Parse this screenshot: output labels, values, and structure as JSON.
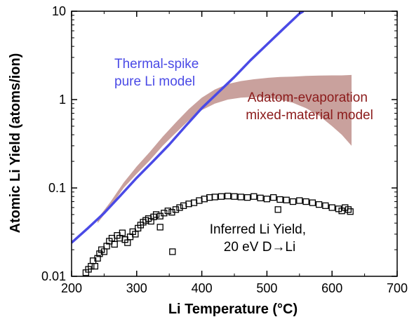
{
  "chart_data": {
    "type": "scatter",
    "xlabel": "Li Temperature (°C)",
    "ylabel": "Atomic Li Yield (atoms/ion)",
    "xlim": [
      200,
      700
    ],
    "ylim": [
      0.01,
      10
    ],
    "yscale": "log",
    "grid": false,
    "x_ticks": [
      200,
      300,
      400,
      500,
      600,
      700
    ],
    "x_tick_labels": [
      "200",
      "300",
      "400",
      "500",
      "600",
      "700"
    ],
    "y_ticks": [
      0.01,
      0.1,
      1,
      10
    ],
    "y_tick_labels": [
      "0.01",
      "0.1",
      "1",
      "10"
    ],
    "colors": {
      "thermal_spike": "#4a4ae6",
      "adatom_band": "#c9a19d",
      "adatom_text": "#8b1a1a",
      "data": "#000000"
    },
    "series": [
      {
        "name": "Thermal-spike pure Li model",
        "kind": "line",
        "x": [
          200,
          225,
          250,
          275,
          300,
          325,
          350,
          375,
          400,
          425,
          450,
          475,
          500,
          525,
          550,
          556
        ],
        "y": [
          0.024,
          0.035,
          0.052,
          0.082,
          0.13,
          0.2,
          0.31,
          0.5,
          0.8,
          1.2,
          1.8,
          2.8,
          4.2,
          6.3,
          9.4,
          10.0
        ]
      },
      {
        "name": "Adatom-evaporation mixed-material model",
        "kind": "band",
        "x": [
          240,
          260,
          280,
          300,
          320,
          340,
          360,
          380,
          400,
          420,
          440,
          460,
          480,
          500,
          520,
          540,
          560,
          580,
          600,
          615,
          630
        ],
        "y_low": [
          0.04,
          0.062,
          0.1,
          0.145,
          0.205,
          0.3,
          0.42,
          0.58,
          0.76,
          0.9,
          1.0,
          1.05,
          1.07,
          1.05,
          1.0,
          0.92,
          0.8,
          0.66,
          0.5,
          0.4,
          0.3
        ],
        "y_high": [
          0.045,
          0.07,
          0.115,
          0.175,
          0.255,
          0.38,
          0.55,
          0.78,
          1.05,
          1.3,
          1.5,
          1.62,
          1.7,
          1.76,
          1.8,
          1.82,
          1.85,
          1.87,
          1.88,
          1.88,
          1.9
        ]
      },
      {
        "name": "Inferred Li Yield, 20 eV D→Li",
        "kind": "scatter",
        "x": [
          222,
          226,
          230,
          233,
          236,
          240,
          243,
          246,
          250,
          254,
          258,
          262,
          266,
          270,
          274,
          278,
          282,
          286,
          290,
          294,
          298,
          302,
          306,
          310,
          314,
          318,
          322,
          326,
          330,
          336,
          342,
          348,
          354,
          360,
          366,
          372,
          380,
          388,
          396,
          404,
          412,
          420,
          430,
          440,
          450,
          460,
          470,
          480,
          490,
          500,
          510,
          520,
          530,
          540,
          550,
          560,
          570,
          580,
          590,
          600,
          610,
          615,
          620,
          625,
          628,
          355,
          517,
          336
        ],
        "y": [
          0.011,
          0.012,
          0.013,
          0.015,
          0.013,
          0.016,
          0.018,
          0.02,
          0.019,
          0.022,
          0.025,
          0.027,
          0.023,
          0.029,
          0.027,
          0.031,
          0.026,
          0.024,
          0.028,
          0.032,
          0.03,
          0.035,
          0.038,
          0.041,
          0.043,
          0.045,
          0.042,
          0.047,
          0.05,
          0.048,
          0.052,
          0.055,
          0.053,
          0.057,
          0.06,
          0.063,
          0.066,
          0.068,
          0.072,
          0.075,
          0.078,
          0.079,
          0.08,
          0.081,
          0.08,
          0.079,
          0.078,
          0.08,
          0.077,
          0.075,
          0.078,
          0.074,
          0.073,
          0.07,
          0.072,
          0.07,
          0.068,
          0.065,
          0.063,
          0.06,
          0.058,
          0.055,
          0.06,
          0.057,
          0.054,
          0.019,
          0.057,
          0.036
        ]
      }
    ],
    "annotations": {
      "thermal_spike": [
        "Thermal-spike",
        "pure Li model"
      ],
      "adatom": [
        "Adatom-evaporation",
        "mixed-material model"
      ],
      "inferred": [
        "Inferred Li Yield,",
        "20 eV D→Li"
      ]
    }
  }
}
